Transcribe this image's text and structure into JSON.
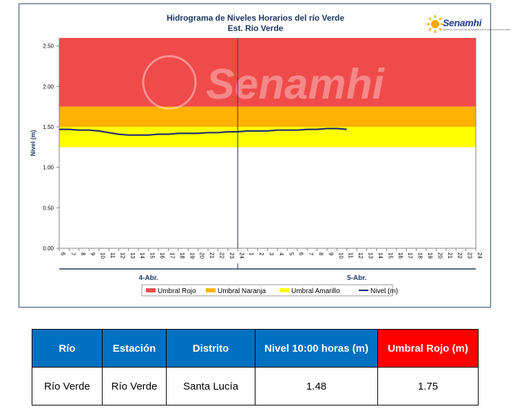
{
  "chart_data": {
    "type": "line",
    "title": "Hidrograma de Niveles Horarios del río Verde",
    "subtitle": "Est. Río Verde",
    "ylabel": "Nivel (m)",
    "xlabel": "",
    "ylim": [
      0,
      2.6
    ],
    "yticks": [
      "0.00",
      "0.50",
      "1.00",
      "1.50",
      "2.00",
      "2.50"
    ],
    "ytick_values": [
      0,
      0.5,
      1.0,
      1.5,
      2.0,
      2.5
    ],
    "xticks": [
      "6",
      "7",
      "8",
      "9",
      "10",
      "11",
      "12",
      "13",
      "14",
      "15",
      "16",
      "17",
      "18",
      "19",
      "20",
      "21",
      "22",
      "23",
      "24",
      "1",
      "2",
      "3",
      "4",
      "5",
      "6",
      "7",
      "8",
      "9",
      "10",
      "11",
      "12",
      "13",
      "14",
      "15",
      "16",
      "17",
      "18",
      "19",
      "20",
      "21",
      "22",
      "23",
      "24"
    ],
    "day_labels": [
      "4-Abr.",
      "5-Abr."
    ],
    "grid": false,
    "legend_position": "bottom",
    "bands": [
      {
        "name": "Umbral Rojo",
        "from": 1.75,
        "to": 2.6,
        "color": "#f04b4b"
      },
      {
        "name": "Umbral Naranja",
        "from": 1.5,
        "to": 1.75,
        "color": "#ffb300"
      },
      {
        "name": "Umbral Amarillo",
        "from": 1.25,
        "to": 1.5,
        "color": "#ffff00"
      }
    ],
    "series": [
      {
        "name": "Nivel (m)",
        "color": "#1f2b7a",
        "values": [
          1.47,
          1.47,
          1.46,
          1.46,
          1.45,
          1.43,
          1.41,
          1.4,
          1.4,
          1.4,
          1.41,
          1.41,
          1.42,
          1.42,
          1.42,
          1.43,
          1.43,
          1.44,
          1.44,
          1.45,
          1.45,
          1.45,
          1.46,
          1.46,
          1.46,
          1.47,
          1.47,
          1.48,
          1.48,
          1.47
        ]
      }
    ],
    "legend": [
      "Umbral Rojo",
      "Umbral Naranja",
      "Umbral Amarillo",
      "Nivel (m)"
    ]
  },
  "logo": {
    "text": "Senamhi",
    "subtext": "SERVICIO NACIONAL DE METEOROLOGÍA E HIDROLOGÍA DEL PERÚ",
    "watermark": "Senamhi"
  },
  "table": {
    "headers": [
      "Río",
      "Estación",
      "Distrito",
      "Nivel 10:00 horas (m)",
      "Umbral Rojo (m)"
    ],
    "row": [
      "Río Verde",
      "Río Verde",
      "Santa Lucía",
      "1.48",
      "1.75"
    ]
  }
}
